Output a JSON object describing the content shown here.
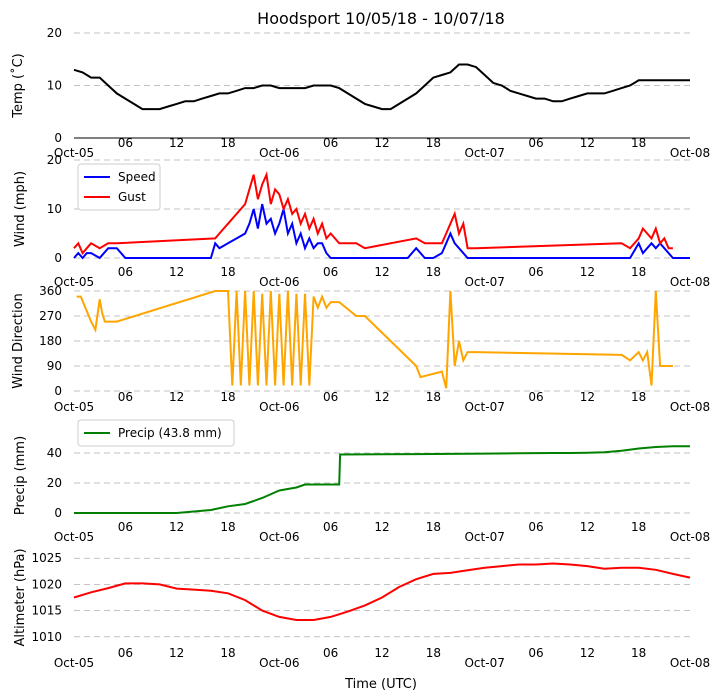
{
  "title": "Hoodsport 10/05/18 - 10/07/18",
  "xlabel": "Time (UTC)",
  "x_ticks": [
    "Oct-05",
    "06",
    "12",
    "18",
    "Oct-06",
    "06",
    "12",
    "18",
    "Oct-07",
    "06",
    "12",
    "18",
    "Oct-08"
  ],
  "colors": {
    "temp": "#000000",
    "speed": "#0000ff",
    "gust": "#ff0000",
    "dir": "#ffa500",
    "precip": "#008000",
    "alt": "#ff0000"
  },
  "chart_data": [
    {
      "id": "temp",
      "type": "line",
      "ylabel": "Temp ($^\\circ$C)",
      "ylabel_display": "Temp (˚C)",
      "ylim": [
        0,
        20
      ],
      "yticks": [
        "0",
        "10",
        "20"
      ],
      "x_unit": "hours since Oct-05 00:00",
      "xlim": [
        0,
        72
      ],
      "series": [
        {
          "name": "Temp",
          "x": [
            0,
            1,
            2,
            3,
            4,
            5,
            6,
            7,
            8,
            9,
            10,
            11,
            12,
            13,
            14,
            15,
            16,
            17,
            18,
            19,
            20,
            21,
            22,
            23,
            24,
            25,
            26,
            27,
            28,
            29,
            30,
            31,
            32,
            33,
            34,
            35,
            36,
            37,
            38,
            39,
            40,
            41,
            42,
            43,
            44,
            45,
            46,
            47,
            48,
            49,
            50,
            51,
            52,
            53,
            54,
            55,
            56,
            57,
            58,
            59,
            60,
            61,
            62,
            63,
            64,
            65,
            66,
            67,
            68,
            69,
            70,
            71,
            72
          ],
          "values": [
            13,
            12.5,
            11.5,
            11.5,
            10,
            8.5,
            7.5,
            6.5,
            5.5,
            5.5,
            5.5,
            6,
            6.5,
            7,
            7,
            7.5,
            8,
            8.5,
            8.5,
            9,
            9.5,
            9.5,
            10,
            10,
            9.5,
            9.5,
            9.5,
            9.5,
            10,
            10,
            10,
            9.5,
            8.5,
            7.5,
            6.5,
            6,
            5.5,
            5.5,
            6.5,
            7.5,
            8.5,
            10,
            11.5,
            12,
            12.5,
            14,
            14,
            13.5,
            12,
            10.5,
            10,
            9,
            8.5,
            8,
            7.5,
            7.5,
            7,
            7,
            7.5,
            8,
            8.5,
            8.5,
            8.5,
            9,
            9.5,
            10,
            11,
            11,
            11,
            11,
            11,
            11,
            11
          ]
        }
      ]
    },
    {
      "id": "wind",
      "type": "line",
      "ylabel": "Wind (mph)",
      "ylim": [
        0,
        20
      ],
      "yticks": [
        "0",
        "10",
        "20"
      ],
      "x_unit": "hours since Oct-05 00:00",
      "xlim": [
        0,
        72
      ],
      "legend": [
        "Speed",
        "Gust"
      ],
      "series": [
        {
          "name": "Speed",
          "x": [
            0,
            0.5,
            1,
            1.5,
            2,
            3,
            4,
            5,
            6,
            7,
            8,
            9,
            10,
            11,
            12,
            13,
            14,
            15,
            16,
            16.5,
            17,
            18,
            19,
            20,
            20.5,
            21,
            21.5,
            22,
            22.5,
            23,
            23.5,
            24,
            24.5,
            25,
            25.5,
            26,
            26.5,
            27,
            27.5,
            28,
            28.5,
            29,
            29.5,
            30,
            31,
            32,
            33,
            34,
            35,
            36,
            37,
            38,
            39,
            40,
            41,
            42,
            43,
            43.5,
            44,
            44.5,
            45,
            46,
            47,
            48,
            49,
            50,
            51,
            52,
            53,
            54,
            55,
            56,
            57,
            58,
            59,
            60,
            61,
            62,
            63,
            64,
            65,
            66,
            66.5,
            67,
            67.5,
            68,
            68.5,
            69,
            69.5,
            70,
            71,
            72
          ],
          "values": [
            0,
            1,
            0,
            1,
            1,
            0,
            2,
            2,
            0,
            0,
            0,
            0,
            0,
            0,
            0,
            0,
            0,
            0,
            0,
            3,
            2,
            3,
            4,
            5,
            7,
            10,
            6,
            11,
            7,
            8,
            5,
            7,
            10,
            5,
            7,
            3,
            5,
            2,
            4,
            2,
            3,
            3,
            1,
            0,
            0,
            0,
            0,
            0,
            0,
            0,
            0,
            0,
            0,
            2,
            0,
            0,
            1,
            3,
            5,
            3,
            2,
            0,
            0,
            0,
            0,
            0,
            0,
            0,
            0,
            0,
            0,
            0,
            0,
            0,
            0,
            0,
            0,
            0,
            0,
            0,
            0,
            3,
            1,
            2,
            3,
            2,
            3,
            2,
            1,
            0,
            0,
            0
          ]
        },
        {
          "name": "Gust",
          "x": [
            0,
            0.5,
            1,
            1.5,
            2,
            3,
            4,
            5,
            16.5,
            17,
            18,
            19,
            20,
            20.5,
            21,
            21.5,
            22,
            22.5,
            23,
            23.5,
            24,
            24.5,
            25,
            25.5,
            26,
            26.5,
            27,
            27.5,
            28,
            28.5,
            29,
            29.5,
            30,
            31,
            33,
            34,
            40,
            41,
            43,
            43.5,
            44,
            44.5,
            45,
            45.5,
            46,
            47,
            64,
            65,
            66,
            66.5,
            67,
            67.5,
            68,
            68.5,
            69,
            69.5,
            70
          ],
          "values": [
            2,
            3,
            1,
            2,
            3,
            2,
            3,
            3,
            4,
            5,
            7,
            9,
            11,
            14,
            17,
            12,
            15,
            17,
            11,
            14,
            13,
            10,
            12,
            9,
            10,
            7,
            9,
            6,
            8,
            5,
            7,
            4,
            5,
            3,
            3,
            2,
            4,
            3,
            3,
            5,
            7,
            9,
            5,
            7,
            2,
            2,
            3,
            2,
            4,
            6,
            5,
            4,
            6,
            3,
            4,
            2,
            2
          ]
        }
      ]
    },
    {
      "id": "dir",
      "type": "line",
      "ylabel": "Wind Direction",
      "ylim": [
        0,
        360
      ],
      "yticks": [
        "0",
        "90",
        "180",
        "270",
        "360"
      ],
      "x_unit": "hours since Oct-05 00:00",
      "xlim": [
        0,
        72
      ],
      "series": [
        {
          "name": "Wind Direction",
          "x": [
            0.3,
            0.8,
            2,
            2.5,
            3,
            3.3,
            3.6,
            4,
            5,
            16.5,
            17,
            17.5,
            18,
            18.5,
            19,
            19.5,
            20,
            20.5,
            21,
            21.5,
            22,
            22.5,
            23,
            23.5,
            24,
            24.5,
            25,
            25.5,
            26,
            26.5,
            27,
            27.5,
            28,
            28.5,
            29,
            29.5,
            30,
            31,
            33,
            34,
            40,
            40.5,
            43,
            43.5,
            44,
            44.5,
            45,
            45.5,
            46,
            47,
            64,
            65,
            66,
            66.5,
            67,
            67.5,
            68,
            68.5,
            69,
            70
          ],
          "values": [
            340,
            340,
            250,
            220,
            330,
            280,
            250,
            250,
            250,
            360,
            360,
            360,
            360,
            20,
            360,
            20,
            360,
            20,
            360,
            20,
            350,
            20,
            360,
            20,
            350,
            20,
            360,
            20,
            350,
            20,
            350,
            20,
            340,
            300,
            340,
            300,
            320,
            320,
            270,
            270,
            90,
            50,
            70,
            10,
            360,
            90,
            180,
            110,
            140,
            140,
            130,
            110,
            140,
            110,
            140,
            20,
            360,
            90,
            90,
            90
          ]
        }
      ]
    },
    {
      "id": "precip",
      "type": "line",
      "ylabel": "Precip (mm)",
      "ylim": [
        0,
        50
      ],
      "yticks": [
        "0",
        "20",
        "40"
      ],
      "x_unit": "hours since Oct-05 00:00",
      "xlim": [
        0,
        72
      ],
      "legend": [
        "Precip (43.8 mm)"
      ],
      "series": [
        {
          "name": "Precip (43.8 mm)",
          "x": [
            0,
            12,
            14,
            16,
            18,
            20,
            22,
            24,
            26,
            27,
            30,
            31,
            31.1,
            40,
            48,
            52,
            56,
            58,
            60,
            62,
            64,
            66,
            68,
            70,
            72
          ],
          "values": [
            0,
            0,
            1,
            2,
            4.5,
            6,
            10,
            15,
            17,
            19,
            19,
            19,
            39,
            39.3,
            39.6,
            39.8,
            40,
            40,
            40.2,
            40.5,
            41.5,
            43,
            44,
            44.5,
            44.5
          ]
        }
      ]
    },
    {
      "id": "alt",
      "type": "line",
      "ylabel": "Altimeter (hPa)",
      "ylim": [
        1009,
        1026
      ],
      "yticks": [
        "1010",
        "1015",
        "1020",
        "1025"
      ],
      "x_unit": "hours since Oct-05 00:00",
      "xlim": [
        0,
        72
      ],
      "series": [
        {
          "name": "Altimeter",
          "x": [
            0,
            2,
            4,
            6,
            8,
            10,
            12,
            14,
            16,
            18,
            20,
            22,
            24,
            26,
            28,
            30,
            32,
            34,
            36,
            38,
            40,
            42,
            44,
            46,
            48,
            50,
            52,
            54,
            56,
            58,
            60,
            62,
            64,
            66,
            68,
            70,
            72
          ],
          "values": [
            1017.5,
            1018.5,
            1019.3,
            1020.2,
            1020.2,
            1020,
            1019.2,
            1019,
            1018.8,
            1018.3,
            1017,
            1015,
            1013.8,
            1013.2,
            1013.2,
            1013.8,
            1014.8,
            1016,
            1017.5,
            1019.5,
            1021,
            1022,
            1022.2,
            1022.7,
            1023.2,
            1023.5,
            1023.8,
            1023.8,
            1024,
            1023.8,
            1023.5,
            1023,
            1023.2,
            1023.2,
            1022.8,
            1022,
            1021.3
          ]
        }
      ]
    }
  ]
}
